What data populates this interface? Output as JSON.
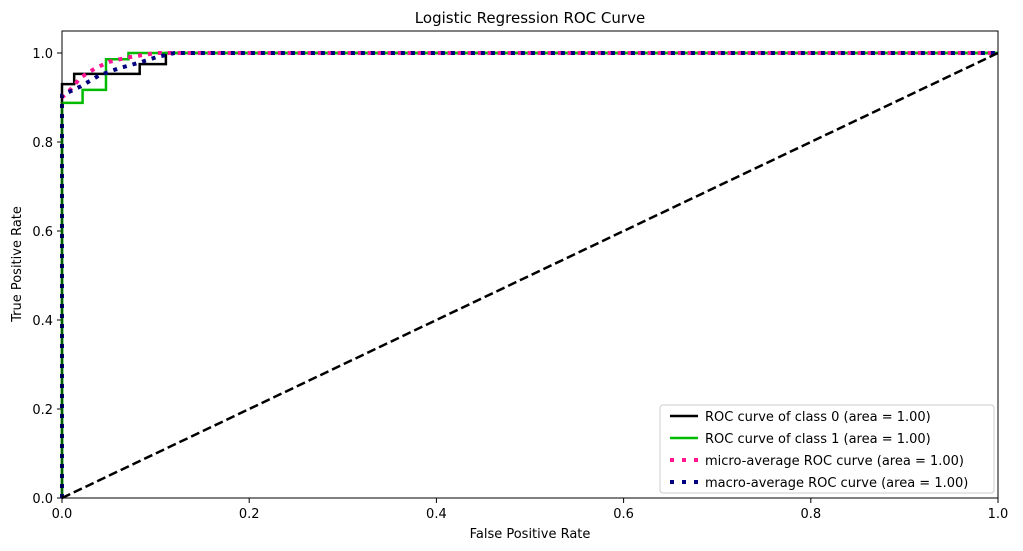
{
  "chart_data": {
    "type": "line",
    "title": "Logistic Regression ROC Curve",
    "xlabel": "False Positive Rate",
    "ylabel": "True Positive Rate",
    "xlim": [
      0,
      1.0
    ],
    "ylim": [
      0,
      1.05
    ],
    "xticks": [
      "0.0",
      "0.2",
      "0.4",
      "0.6",
      "0.8",
      "1.0"
    ],
    "yticks": [
      "0.0",
      "0.2",
      "0.4",
      "0.6",
      "0.8",
      "1.0"
    ],
    "grid": false,
    "legend_position": "bottom-right",
    "series": [
      {
        "name": "ROC curve of class 0 (area = 1.00)",
        "color": "#000000",
        "style": "solid",
        "x": [
          0,
          0,
          0.013,
          0.013,
          0.083,
          0.083,
          0.111,
          0.111,
          1.0
        ],
        "y": [
          0,
          0.93,
          0.93,
          0.953,
          0.953,
          0.975,
          0.975,
          1.0,
          1.0
        ]
      },
      {
        "name": "ROC curve of class 1 (area = 1.00)",
        "color": "#00bb00",
        "style": "solid",
        "x": [
          0,
          0,
          0.022,
          0.022,
          0.047,
          0.047,
          0.071,
          0.071,
          1.0
        ],
        "y": [
          0,
          0.888,
          0.888,
          0.917,
          0.917,
          0.986,
          0.986,
          1.0,
          1.0
        ]
      },
      {
        "name": "micro-average ROC curve (area = 1.00)",
        "color": "#ff1493",
        "style": "dotted",
        "x": [
          0,
          0,
          0.01,
          0.02,
          0.035,
          0.05,
          0.07,
          0.1,
          1.0
        ],
        "y": [
          0,
          0.9,
          0.92,
          0.945,
          0.965,
          0.98,
          0.99,
          1.0,
          1.0
        ]
      },
      {
        "name": "macro-average ROC curve (area = 1.00)",
        "color": "#000080",
        "style": "dotted",
        "x": [
          0,
          0,
          0.02,
          0.04,
          0.06,
          0.085,
          0.1,
          0.12,
          1.0
        ],
        "y": [
          0,
          0.905,
          0.925,
          0.95,
          0.965,
          0.98,
          0.99,
          1.0,
          1.0
        ]
      },
      {
        "color": "#000000",
        "style": "dashed",
        "x": [
          0,
          1
        ],
        "y": [
          0,
          1
        ]
      }
    ]
  }
}
